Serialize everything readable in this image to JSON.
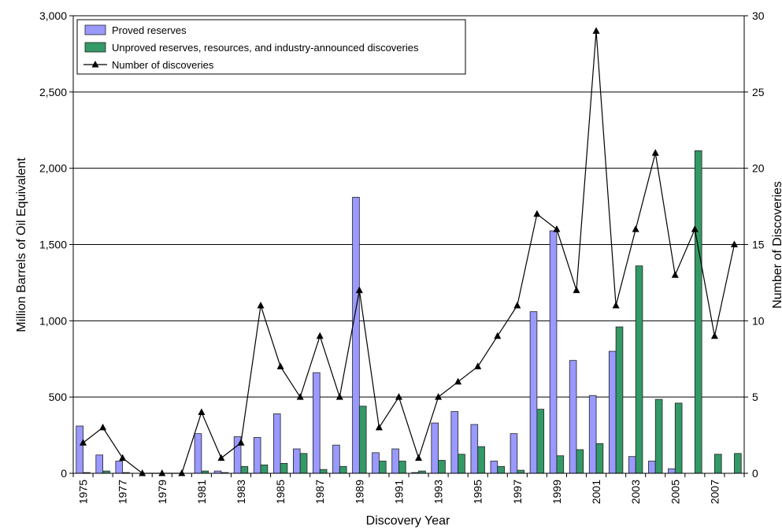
{
  "chart_data": {
    "type": "bar",
    "title": "",
    "xlabel": "Discovery Year",
    "ylabel": "Million Barrels of Oil Equivalent",
    "ylabel_right": "Number of Discoveries",
    "ylim": [
      0,
      3000
    ],
    "ylim_right": [
      0,
      30
    ],
    "yticks": [
      "0",
      "500",
      "1,000",
      "1,500",
      "2,000",
      "2,500",
      "3,000"
    ],
    "yticks_right": [
      "0",
      "5",
      "10",
      "15",
      "20",
      "25",
      "30"
    ],
    "grid": true,
    "legend_position": "top-left",
    "categories": [
      "1975",
      "1976",
      "1977",
      "1978",
      "1979",
      "1980",
      "1981",
      "1982",
      "1983",
      "1984",
      "1985",
      "1986",
      "1987",
      "1988",
      "1989",
      "1990",
      "1991",
      "1992",
      "1993",
      "1994",
      "1995",
      "1996",
      "1997",
      "1998",
      "1999",
      "2000",
      "2001",
      "2002",
      "2003",
      "2004",
      "2005",
      "2006",
      "2007",
      "2008"
    ],
    "xtick_labels": [
      "1975",
      "1977",
      "1979",
      "1981",
      "1983",
      "1985",
      "1987",
      "1989",
      "1991",
      "1993",
      "1995",
      "1997",
      "1999",
      "2001",
      "2003",
      "2005",
      "2007"
    ],
    "series": [
      {
        "name": "Proved reserves",
        "kind": "bar",
        "axis": "left",
        "color": "#9999ff",
        "values": [
          310,
          120,
          80,
          0,
          0,
          0,
          260,
          15,
          240,
          235,
          390,
          160,
          660,
          185,
          1810,
          135,
          160,
          5,
          330,
          405,
          320,
          80,
          260,
          1060,
          1590,
          740,
          510,
          800,
          110,
          80,
          30,
          0,
          0,
          0
        ]
      },
      {
        "name": "Unproved reserves, resources, and industry-announced discoveries",
        "kind": "bar",
        "axis": "left",
        "color": "#339966",
        "values": [
          5,
          15,
          5,
          0,
          0,
          0,
          15,
          5,
          45,
          55,
          65,
          130,
          25,
          45,
          440,
          80,
          80,
          15,
          85,
          125,
          175,
          45,
          20,
          420,
          115,
          155,
          195,
          960,
          1360,
          485,
          460,
          2115,
          125,
          130
        ]
      },
      {
        "name": "Number of discoveries",
        "kind": "line",
        "axis": "right",
        "color": "#000000",
        "values": [
          2,
          3,
          1,
          0,
          0,
          0,
          4,
          1,
          2,
          11,
          7,
          5,
          9,
          5,
          12,
          3,
          5,
          1,
          5,
          6,
          7,
          9,
          11,
          17,
          16,
          12,
          29,
          11,
          16,
          21,
          13,
          16,
          9,
          15
        ]
      }
    ]
  }
}
